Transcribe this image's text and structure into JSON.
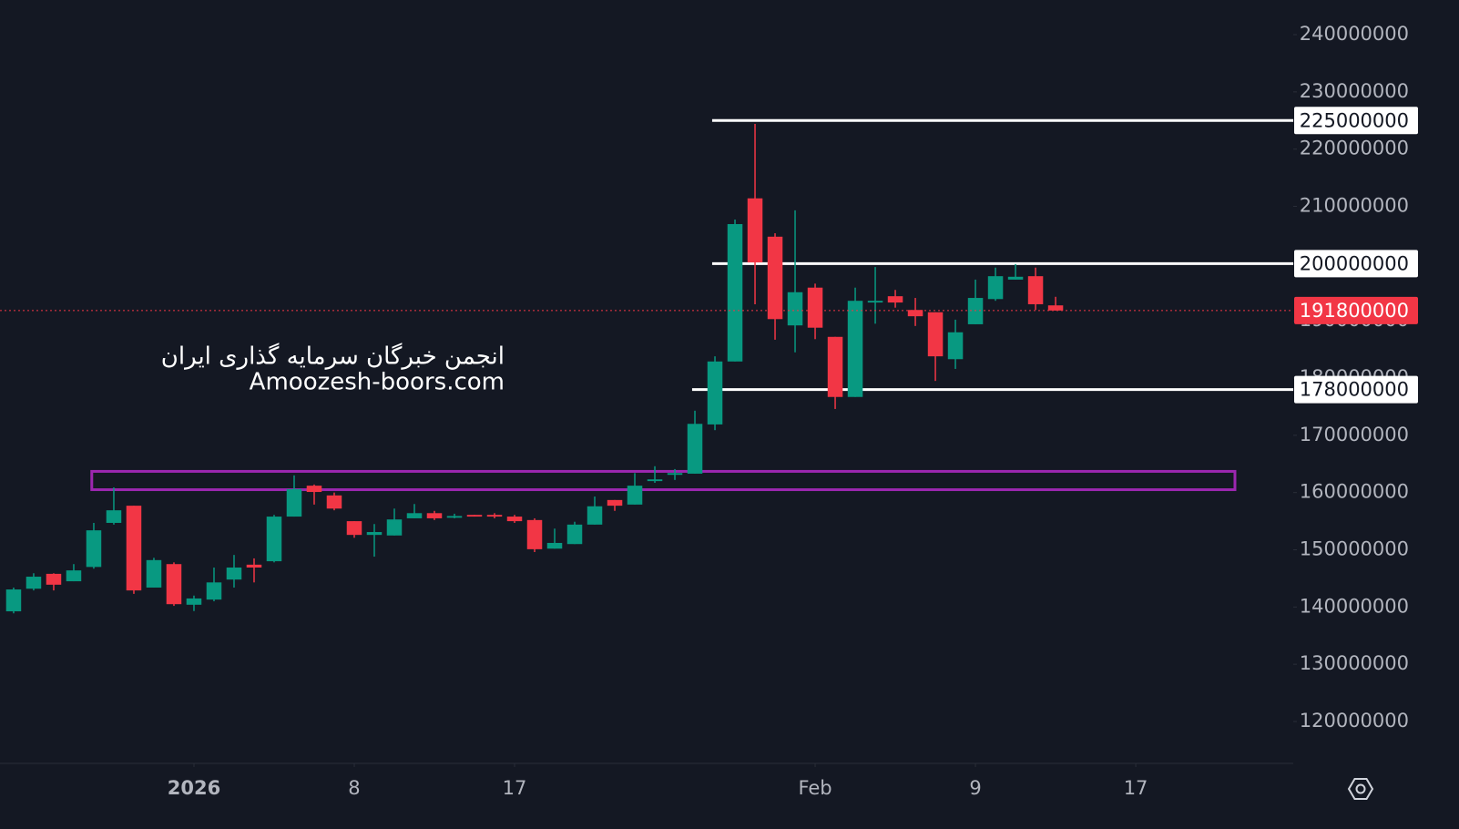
{
  "chart_data": {
    "type": "candlestick",
    "x": [
      -9,
      -8,
      -7,
      -6,
      -5,
      -4,
      -3,
      -2,
      -1,
      0,
      1,
      2,
      3,
      4,
      5,
      6,
      7,
      8,
      9,
      10,
      11,
      12,
      13,
      14,
      15,
      16,
      17,
      18,
      19,
      20,
      21,
      22,
      23,
      24,
      25,
      26,
      27,
      28,
      29,
      30,
      31,
      32,
      33,
      34,
      35,
      36,
      37,
      38,
      39,
      40,
      41,
      42,
      43
    ],
    "open": [
      139250000,
      143200000,
      145800000,
      144500000,
      147000000,
      154700000,
      157700000,
      143400000,
      147500000,
      140400000,
      141300000,
      144800000,
      147400000,
      148000000,
      155800000,
      161200000,
      159500000,
      155000000,
      152600000,
      152500000,
      155500000,
      156400000,
      155600000,
      156100000,
      156100000,
      155800000,
      155200000,
      150200000,
      151000000,
      154400000,
      158700000,
      157900000,
      162000000,
      163100000,
      163300000,
      171900000,
      182900000,
      211400000,
      204700000,
      189200000,
      195800000,
      187200000,
      176700000,
      193200000,
      194300000,
      191900000,
      191500000,
      183300000,
      189400000,
      193800000,
      197200000,
      197800000,
      192700000
    ],
    "high": [
      143400000,
      145900000,
      145900000,
      147500000,
      154700000,
      160900000,
      157700000,
      148600000,
      147800000,
      142000000,
      146900000,
      149100000,
      148500000,
      156100000,
      163000000,
      161400000,
      160000000,
      155000000,
      154500000,
      157200000,
      158000000,
      156800000,
      156300000,
      156100000,
      156400000,
      156100000,
      155500000,
      153700000,
      154900000,
      159300000,
      158700000,
      163400000,
      164600000,
      164100000,
      174300000,
      183800000,
      207700000,
      224400000,
      205300000,
      209300000,
      196500000,
      187200000,
      195800000,
      199400000,
      195400000,
      194000000,
      191500000,
      190200000,
      197200000,
      199300000,
      199900000,
      199300000,
      194200000
    ],
    "low": [
      138900000,
      142900000,
      142900000,
      144500000,
      146700000,
      154400000,
      142300000,
      143400000,
      140200000,
      139300000,
      141000000,
      143400000,
      144300000,
      147800000,
      155800000,
      157900000,
      156900000,
      152100000,
      148800000,
      152500000,
      155500000,
      155200000,
      155500000,
      155800000,
      155500000,
      154700000,
      149600000,
      150200000,
      151000000,
      154400000,
      156800000,
      157900000,
      161700000,
      162200000,
      163300000,
      170900000,
      182900000,
      192900000,
      186700000,
      184500000,
      186800000,
      174600000,
      176700000,
      189500000,
      192300000,
      189100000,
      179500000,
      181600000,
      189400000,
      193500000,
      197200000,
      191900000,
      191800000
    ],
    "close": [
      143070000,
      145300000,
      143900000,
      146400000,
      153400000,
      156900000,
      142900000,
      148200000,
      140500000,
      141500000,
      144300000,
      146900000,
      146900000,
      155800000,
      160600000,
      160100000,
      157200000,
      152600000,
      153100000,
      155300000,
      156400000,
      155500000,
      155900000,
      155800000,
      155800000,
      155000000,
      150100000,
      151200000,
      154400000,
      157600000,
      157700000,
      161200000,
      162300000,
      163400000,
      172000000,
      182900000,
      206900000,
      200200000,
      190300000,
      195000000,
      188800000,
      176700000,
      193500000,
      193500000,
      193200000,
      190800000,
      183800000,
      188000000,
      194000000,
      197800000,
      197700000,
      192900000,
      191800000
    ],
    "up_color": "#089981",
    "down_color": "#f23645",
    "xlim": [
      -9.68,
      54.86
    ],
    "xticks": [
      {
        "value": 0,
        "label": "2026"
      },
      8,
      {
        "value": 16,
        "label": "17"
      },
      {
        "value": 31,
        "label": "Feb"
      },
      {
        "value": 39,
        "label": "9"
      },
      {
        "value": 47,
        "label": "17"
      }
    ],
    "ylim": [
      112680000,
      246050000
    ],
    "yticks": [
      120000000,
      130000000,
      140000000,
      150000000,
      160000000,
      170000000,
      180000000,
      190000000,
      200000000,
      210000000,
      220000000,
      230000000,
      240000000
    ],
    "hlines": [
      {
        "value": 225000000,
        "start": 25.86,
        "color": "#ffffff"
      },
      {
        "value": 200000000,
        "start": 25.86,
        "color": "#ffffff"
      },
      {
        "value": 178000000,
        "start": 24.86,
        "color": "#ffffff"
      }
    ],
    "zone": {
      "x": [
        -5.1,
        51.95
      ],
      "y": [
        160500000,
        163700000
      ],
      "color": "#9c27b0"
    },
    "watermark": [
      "انجمن خبرگان سرمایه گذاری ایران",
      "Amoozesh-boors.com"
    ]
  }
}
